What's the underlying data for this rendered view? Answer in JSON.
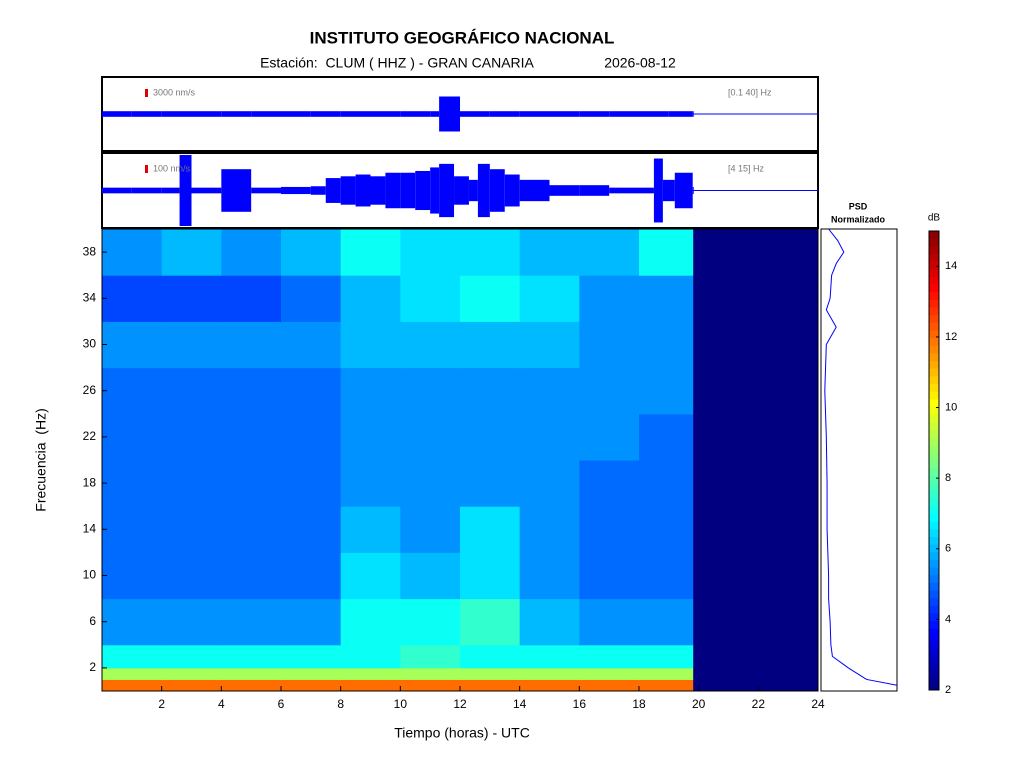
{
  "chart_data": [
    {
      "type": "trace",
      "label": "3000 nm/s",
      "band": "[0.1 40] Hz",
      "color": "#0000ff",
      "xlim": [
        0,
        24
      ],
      "x": [
        0,
        1,
        2,
        3,
        4,
        5,
        6,
        7,
        8,
        9,
        10,
        11,
        11.3,
        12,
        13,
        14,
        15,
        16,
        17,
        18,
        19,
        19.8
      ],
      "values": [
        0.08,
        0.08,
        0.08,
        0.08,
        0.08,
        0.08,
        0.08,
        0.08,
        0.08,
        0.08,
        0.08,
        0.08,
        0.5,
        0.08,
        0.08,
        0.08,
        0.08,
        0.08,
        0.08,
        0.08,
        0.08,
        0.08
      ]
    },
    {
      "type": "trace",
      "label": "100 nm/s",
      "band": "[4 15] Hz",
      "color": "#0000ff",
      "xlim": [
        0,
        24
      ],
      "x": [
        0,
        1,
        2,
        2.6,
        3,
        4,
        5,
        6,
        7,
        7.5,
        8,
        8.5,
        9,
        9.5,
        10,
        10.5,
        11,
        11.3,
        11.8,
        12.3,
        12.6,
        13,
        13.5,
        14,
        15,
        16,
        17,
        18,
        18.5,
        18.8,
        19.2,
        19.8
      ],
      "values": [
        0.08,
        0.08,
        0.08,
        1.0,
        0.08,
        0.6,
        0.08,
        0.1,
        0.12,
        0.35,
        0.4,
        0.45,
        0.4,
        0.5,
        0.5,
        0.55,
        0.65,
        0.75,
        0.4,
        0.3,
        0.75,
        0.6,
        0.45,
        0.3,
        0.15,
        0.15,
        0.08,
        0.08,
        0.9,
        0.3,
        0.5,
        0.1
      ]
    },
    {
      "type": "heatmap",
      "title": "INSTITUTO GEOGRÁFICO NACIONAL",
      "subtitle": "Estación:  CLUM ( HHZ ) - GRAN CANARIA",
      "date": "2026-08-12",
      "xlabel": "Tiempo (horas) - UTC",
      "ylabel": "Frecuencia  (Hz)",
      "xlim": [
        0,
        24
      ],
      "xticks": [
        2,
        4,
        6,
        8,
        10,
        12,
        14,
        16,
        18,
        20,
        22,
        24
      ],
      "ylim": [
        0,
        40
      ],
      "yticks": [
        2,
        6,
        10,
        14,
        18,
        22,
        26,
        30,
        34,
        38
      ],
      "xbins": [
        0,
        2,
        4,
        6,
        8,
        10,
        12,
        14,
        16,
        18,
        19.8
      ],
      "ybins": [
        0,
        1,
        2,
        4,
        8,
        12,
        16,
        20,
        24,
        28,
        32,
        36,
        40
      ],
      "values": [
        [
          12,
          12,
          12,
          12,
          12,
          12,
          12,
          12,
          12,
          12
        ],
        [
          9,
          9,
          9,
          9,
          9,
          9,
          9,
          9,
          9,
          9
        ],
        [
          7,
          7,
          7,
          7,
          7,
          7.5,
          7,
          7,
          7,
          7
        ],
        [
          5.5,
          5.5,
          5.5,
          5.5,
          7,
          7,
          7.5,
          6,
          5.5,
          5.5
        ],
        [
          5,
          5,
          5,
          5,
          6.5,
          6,
          6.5,
          5.5,
          5,
          5
        ],
        [
          5,
          5,
          5,
          5,
          6,
          5.5,
          6.5,
          5.5,
          5,
          5
        ],
        [
          5,
          5,
          5,
          5,
          5.5,
          5.5,
          5.5,
          5.5,
          5,
          5
        ],
        [
          5,
          5,
          5,
          5,
          5.5,
          5.5,
          5.5,
          5.5,
          5.5,
          5
        ],
        [
          5,
          5,
          5,
          5,
          5.5,
          5.5,
          5.5,
          5.5,
          5.5,
          5.5
        ],
        [
          5.5,
          5.5,
          5.5,
          5.5,
          6,
          6,
          6,
          6,
          5.5,
          5.5
        ],
        [
          4.5,
          4.5,
          4.5,
          5,
          6,
          6.5,
          7,
          6.5,
          5.5,
          5.5
        ],
        [
          5.5,
          6,
          5.5,
          6,
          7,
          6.5,
          6.5,
          6,
          6,
          7
        ]
      ],
      "zlim": [
        2,
        15
      ],
      "zticks": [
        2,
        4,
        6,
        8,
        10,
        12,
        14
      ],
      "zlabel": "dB",
      "colormap": "jet"
    },
    {
      "type": "psd",
      "title": [
        "PSD",
        "Normalizado"
      ],
      "color": "#0000ff",
      "xlim": [
        0,
        1
      ],
      "ylim": [
        0,
        40
      ],
      "y": [
        0.5,
        1,
        2,
        3,
        4,
        6,
        8,
        10,
        14,
        18,
        22,
        26,
        30,
        31.5,
        33,
        34,
        36,
        37,
        38,
        39,
        40
      ],
      "values": [
        1.0,
        0.6,
        0.36,
        0.15,
        0.13,
        0.12,
        0.1,
        0.1,
        0.08,
        0.08,
        0.07,
        0.05,
        0.07,
        0.2,
        0.07,
        0.12,
        0.14,
        0.2,
        0.3,
        0.22,
        0.1
      ]
    }
  ]
}
